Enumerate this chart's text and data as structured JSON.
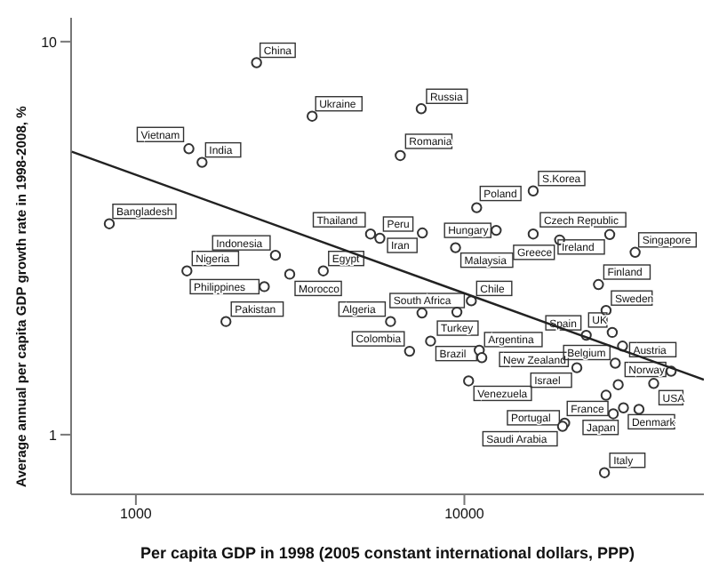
{
  "chart_data": {
    "type": "scatter",
    "xlabel": "Per capita GDP in 1998 (2005 constant international dollars, PPP)",
    "ylabel": "Average annual per capita GDP growth rate in 1998-2008, %",
    "log": "xy",
    "xlim": [
      635,
      53600
    ],
    "ylim": [
      0.705,
      11.5
    ],
    "xticks": [
      1000,
      10000
    ],
    "yticks": [
      1,
      10
    ],
    "marker": "circle",
    "series": [
      {
        "color": "#333333",
        "x": [
          2330,
          3440,
          1450,
          1590,
          830,
          2660,
          1430,
          2460,
          2940,
          3720,
          1880,
          7390,
          6380,
          16200,
          10900,
          5180,
          5530,
          7450,
          12500,
          9400,
          16200,
          19500,
          27700,
          33100,
          25600,
          10500,
          7430,
          9490,
          5960,
          6810,
          7890,
          11100,
          11300,
          27000,
          28200,
          23500,
          30300,
          28800,
          22000,
          42600,
          37700,
          29400,
          27000,
          10300,
          28400,
          30500,
          34000,
          20200,
          19900,
          26700
        ],
        "values": [
          8.84,
          6.46,
          5.34,
          4.93,
          3.44,
          2.86,
          2.61,
          2.38,
          2.56,
          2.61,
          1.94,
          6.75,
          5.13,
          4.17,
          3.78,
          3.24,
          3.16,
          3.26,
          3.31,
          2.99,
          3.24,
          3.13,
          3.23,
          2.91,
          2.41,
          2.19,
          2.04,
          2.05,
          1.94,
          1.63,
          1.73,
          1.64,
          1.57,
          2.07,
          1.82,
          1.79,
          1.68,
          1.52,
          1.48,
          1.45,
          1.35,
          1.34,
          1.26,
          1.37,
          1.13,
          1.17,
          1.16,
          1.07,
          1.05,
          0.8
        ],
        "value_labels": [
          "China",
          "Ukraine",
          "Vietnam",
          "India",
          "Bangladesh",
          "Indonesia",
          "Nigeria",
          "Philippines",
          "Morocco",
          "Egypt",
          "Pakistan",
          "Russia",
          "Romania",
          "S.Korea",
          "Poland",
          "Thailand",
          "Peru",
          "Iran",
          "Hungary",
          "Malaysia",
          "Czech Republic",
          "Greece",
          "Ireland",
          "Singapore",
          "Finland",
          "Chile",
          "South Africa",
          "Turkey",
          "Algeria",
          "Colombia",
          "Brazil",
          "Argentina",
          "New Zealand",
          "Sweden",
          "UK",
          "Spain",
          "Austria",
          "Belgium",
          "Israel",
          "Norway",
          "USA",
          null,
          null,
          "Venezuela",
          "France",
          "Japan",
          "Denmark",
          "Portugal",
          "Saudi Arabia",
          "Italy"
        ]
      },
      {
        "type": "line",
        "color": "#222222",
        "marker": "none",
        "x": [
          638,
          53600
        ],
        "values": [
          5.25,
          1.38
        ]
      }
    ]
  }
}
